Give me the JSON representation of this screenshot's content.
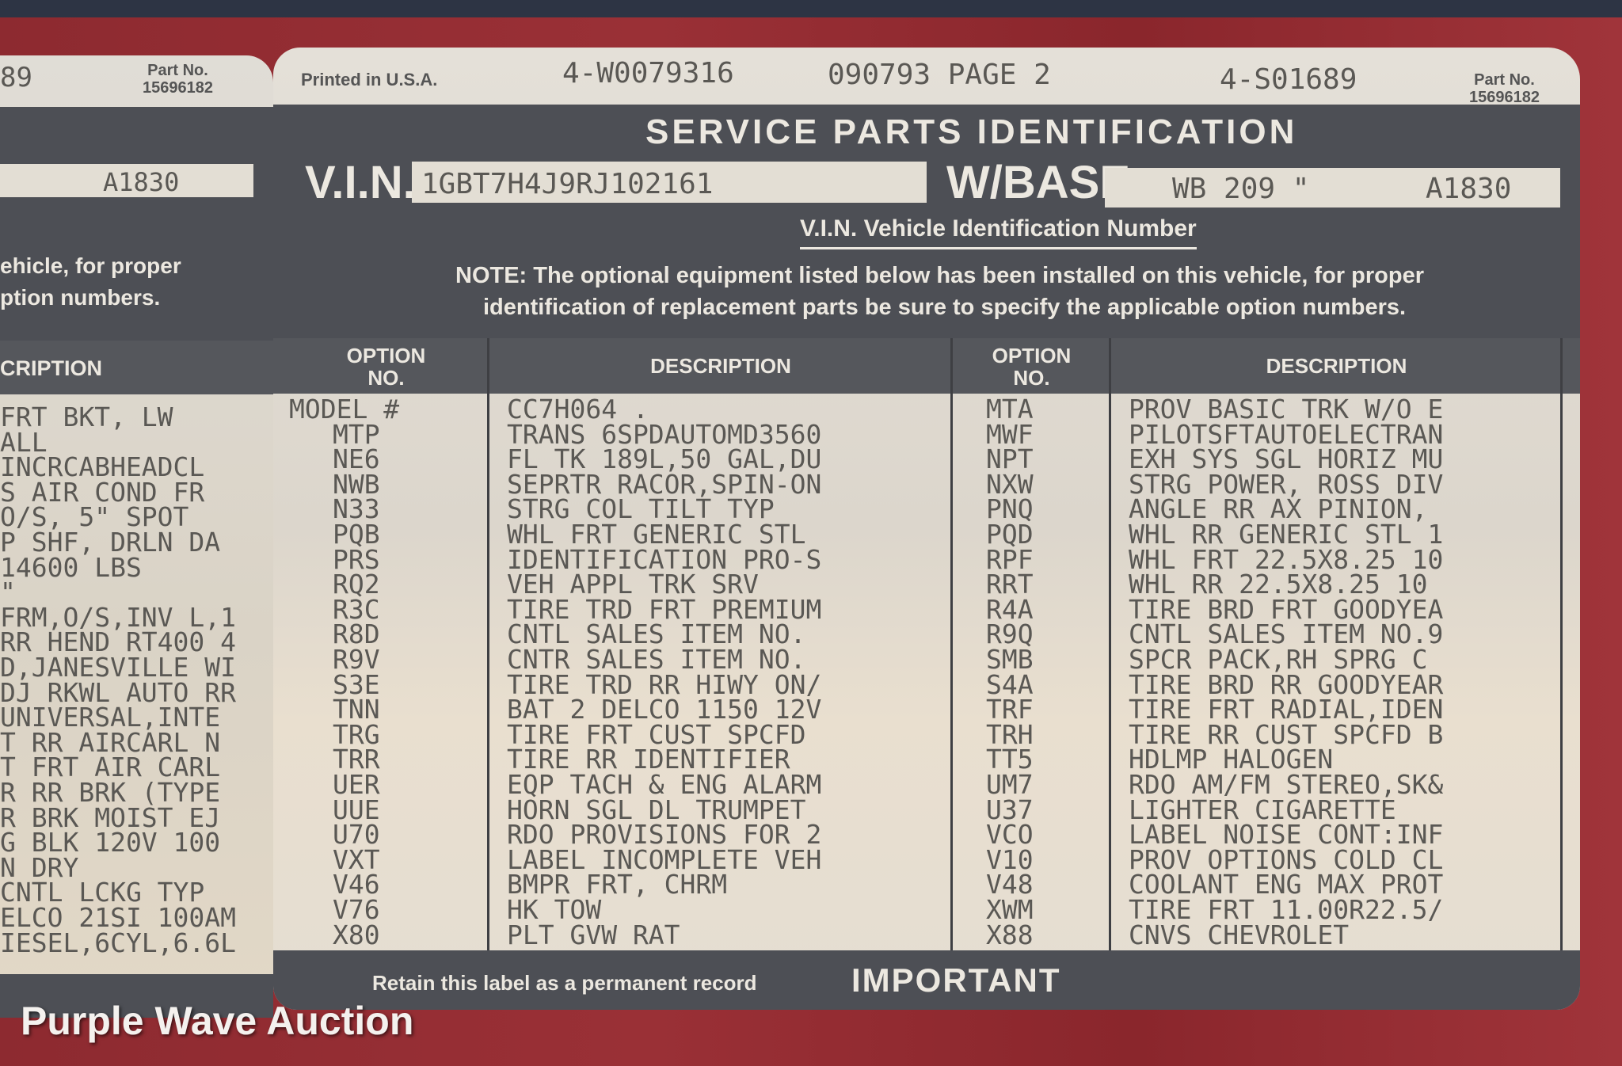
{
  "left_label": {
    "corner_code": "89",
    "part_no_label": "Part No.",
    "part_no": "15696182",
    "base_value": "A1830",
    "note_line1": "ehicle, for proper",
    "note_line2": "ption numbers.",
    "description_header": "CRIPTION",
    "descriptions": [
      "FRT BKT, LW",
      "ALL",
      "INCRCABHEADCL",
      "S AIR COND FR",
      "O/S, 5\" SPOT",
      "P SHF, DRLN DA",
      "14600 LBS",
      "\"",
      "FRM,O/S,INV L,1",
      "RR HEND RT400 4",
      "D,JANESVILLE WI",
      "DJ RKWL AUTO RR",
      "UNIVERSAL,INTE",
      "T RR AIRCARL N",
      "T FRT AIR CARL",
      "R RR BRK (TYPE",
      "R BRK MOIST EJ",
      "G BLK 120V 100",
      "N DRY",
      "CNTL LCKG TYP",
      "ELCO 21SI 100AM",
      "IESEL,6CYL,6.6L"
    ]
  },
  "main_label": {
    "printed_in": "Printed in U.S.A.",
    "code1": "4-W0079316",
    "code2": "090793 PAGE 2",
    "code3": "4-S01689",
    "part_no_label": "Part No.",
    "part_no": "15696182",
    "title": "SERVICE PARTS IDENTIFICATION",
    "vin_label": "V.I.N.",
    "vin": "1GBT7H4J9RJ102161",
    "wbase_label": "W/BASE",
    "wheelbase": "WB 209 \"",
    "base_code": "A1830",
    "vin_caption": "V.I.N. Vehicle Identification Number",
    "note_line1": "NOTE: The optional equipment listed below has been installed on this vehicle, for proper",
    "note_line2": "identification of replacement parts be sure to specify the applicable option numbers.",
    "headers": {
      "option_1": "OPTION",
      "option_2": "NO.",
      "description": "DESCRIPTION"
    },
    "left_rows": [
      {
        "option": "MODEL #",
        "description": "CC7H064 ."
      },
      {
        "option": "MTP",
        "description": "TRANS 6SPDAUTOMD3560"
      },
      {
        "option": "NE6",
        "description": "FL TK 189L,50 GAL,DU"
      },
      {
        "option": "NWB",
        "description": "SEPRTR RACOR,SPIN-ON"
      },
      {
        "option": "N33",
        "description": "STRG COL TILT TYP"
      },
      {
        "option": "PQB",
        "description": "WHL FRT GENERIC STL"
      },
      {
        "option": "PRS",
        "description": "IDENTIFICATION PRO-S"
      },
      {
        "option": "RQ2",
        "description": "VEH APPL TRK SRV"
      },
      {
        "option": "R3C",
        "description": "TIRE TRD FRT PREMIUM"
      },
      {
        "option": "R8D",
        "description": "CNTL SALES ITEM NO."
      },
      {
        "option": "R9V",
        "description": "CNTR SALES ITEM NO."
      },
      {
        "option": "S3E",
        "description": "TIRE TRD RR HIWY ON/"
      },
      {
        "option": "TNN",
        "description": "BAT 2 DELCO 1150 12V"
      },
      {
        "option": "TRG",
        "description": "TIRE FRT CUST SPCFD"
      },
      {
        "option": "TRR",
        "description": "TIRE RR IDENTIFIER"
      },
      {
        "option": "UER",
        "description": "EQP TACH & ENG ALARM"
      },
      {
        "option": "UUE",
        "description": "HORN SGL DL TRUMPET"
      },
      {
        "option": "U70",
        "description": "RDO PROVISIONS FOR 2"
      },
      {
        "option": "VXT",
        "description": "LABEL INCOMPLETE VEH"
      },
      {
        "option": "V46",
        "description": "BMPR FRT, CHRM"
      },
      {
        "option": "V76",
        "description": "HK TOW"
      },
      {
        "option": "X80",
        "description": "PLT GVW RAT"
      }
    ],
    "right_rows": [
      {
        "option": "MTA",
        "description": "PROV BASIC TRK W/O E"
      },
      {
        "option": "MWF",
        "description": "PILOTSFTAUTOELECTRAN"
      },
      {
        "option": "NPT",
        "description": "EXH SYS SGL HORIZ MU"
      },
      {
        "option": "NXW",
        "description": "STRG POWER, ROSS DIV"
      },
      {
        "option": "PNQ",
        "description": "ANGLE RR AX PINION,"
      },
      {
        "option": "PQD",
        "description": "WHL RR GENERIC STL 1"
      },
      {
        "option": "RPF",
        "description": "WHL FRT 22.5X8.25 10"
      },
      {
        "option": "RRT",
        "description": "WHL RR 22.5X8.25 10"
      },
      {
        "option": "R4A",
        "description": "TIRE BRD FRT GOODYEA"
      },
      {
        "option": "R9Q",
        "description": "CNTL SALES ITEM NO.9"
      },
      {
        "option": "SMB",
        "description": "SPCR PACK,RH SPRG C"
      },
      {
        "option": "S4A",
        "description": "TIRE BRD RR GOODYEAR"
      },
      {
        "option": "TRF",
        "description": "TIRE FRT RADIAL,IDEN"
      },
      {
        "option": "TRH",
        "description": "TIRE RR CUST SPCFD B"
      },
      {
        "option": "TT5",
        "description": "HDLMP HALOGEN"
      },
      {
        "option": "UM7",
        "description": "RDO AM/FM STEREO,SK&"
      },
      {
        "option": "U37",
        "description": "LIGHTER CIGARETTE"
      },
      {
        "option": "VCO",
        "description": "LABEL NOISE CONT:INF"
      },
      {
        "option": "V10",
        "description": "PROV OPTIONS COLD CL"
      },
      {
        "option": "V48",
        "description": "COOLANT ENG MAX PROT"
      },
      {
        "option": "XWM",
        "description": "TIRE FRT 11.00R22.5/"
      },
      {
        "option": "X88",
        "description": "CNVS CHEVROLET"
      }
    ],
    "footer_note": "Retain this label as a permanent record",
    "footer_title": "IMPORTANT"
  },
  "watermark": "Purple Wave Auction",
  "colors": {
    "car_body": "#8d2a30",
    "label_paper": "#e4e0d8",
    "label_band": "#4d4f55",
    "print": "#5a5854"
  }
}
